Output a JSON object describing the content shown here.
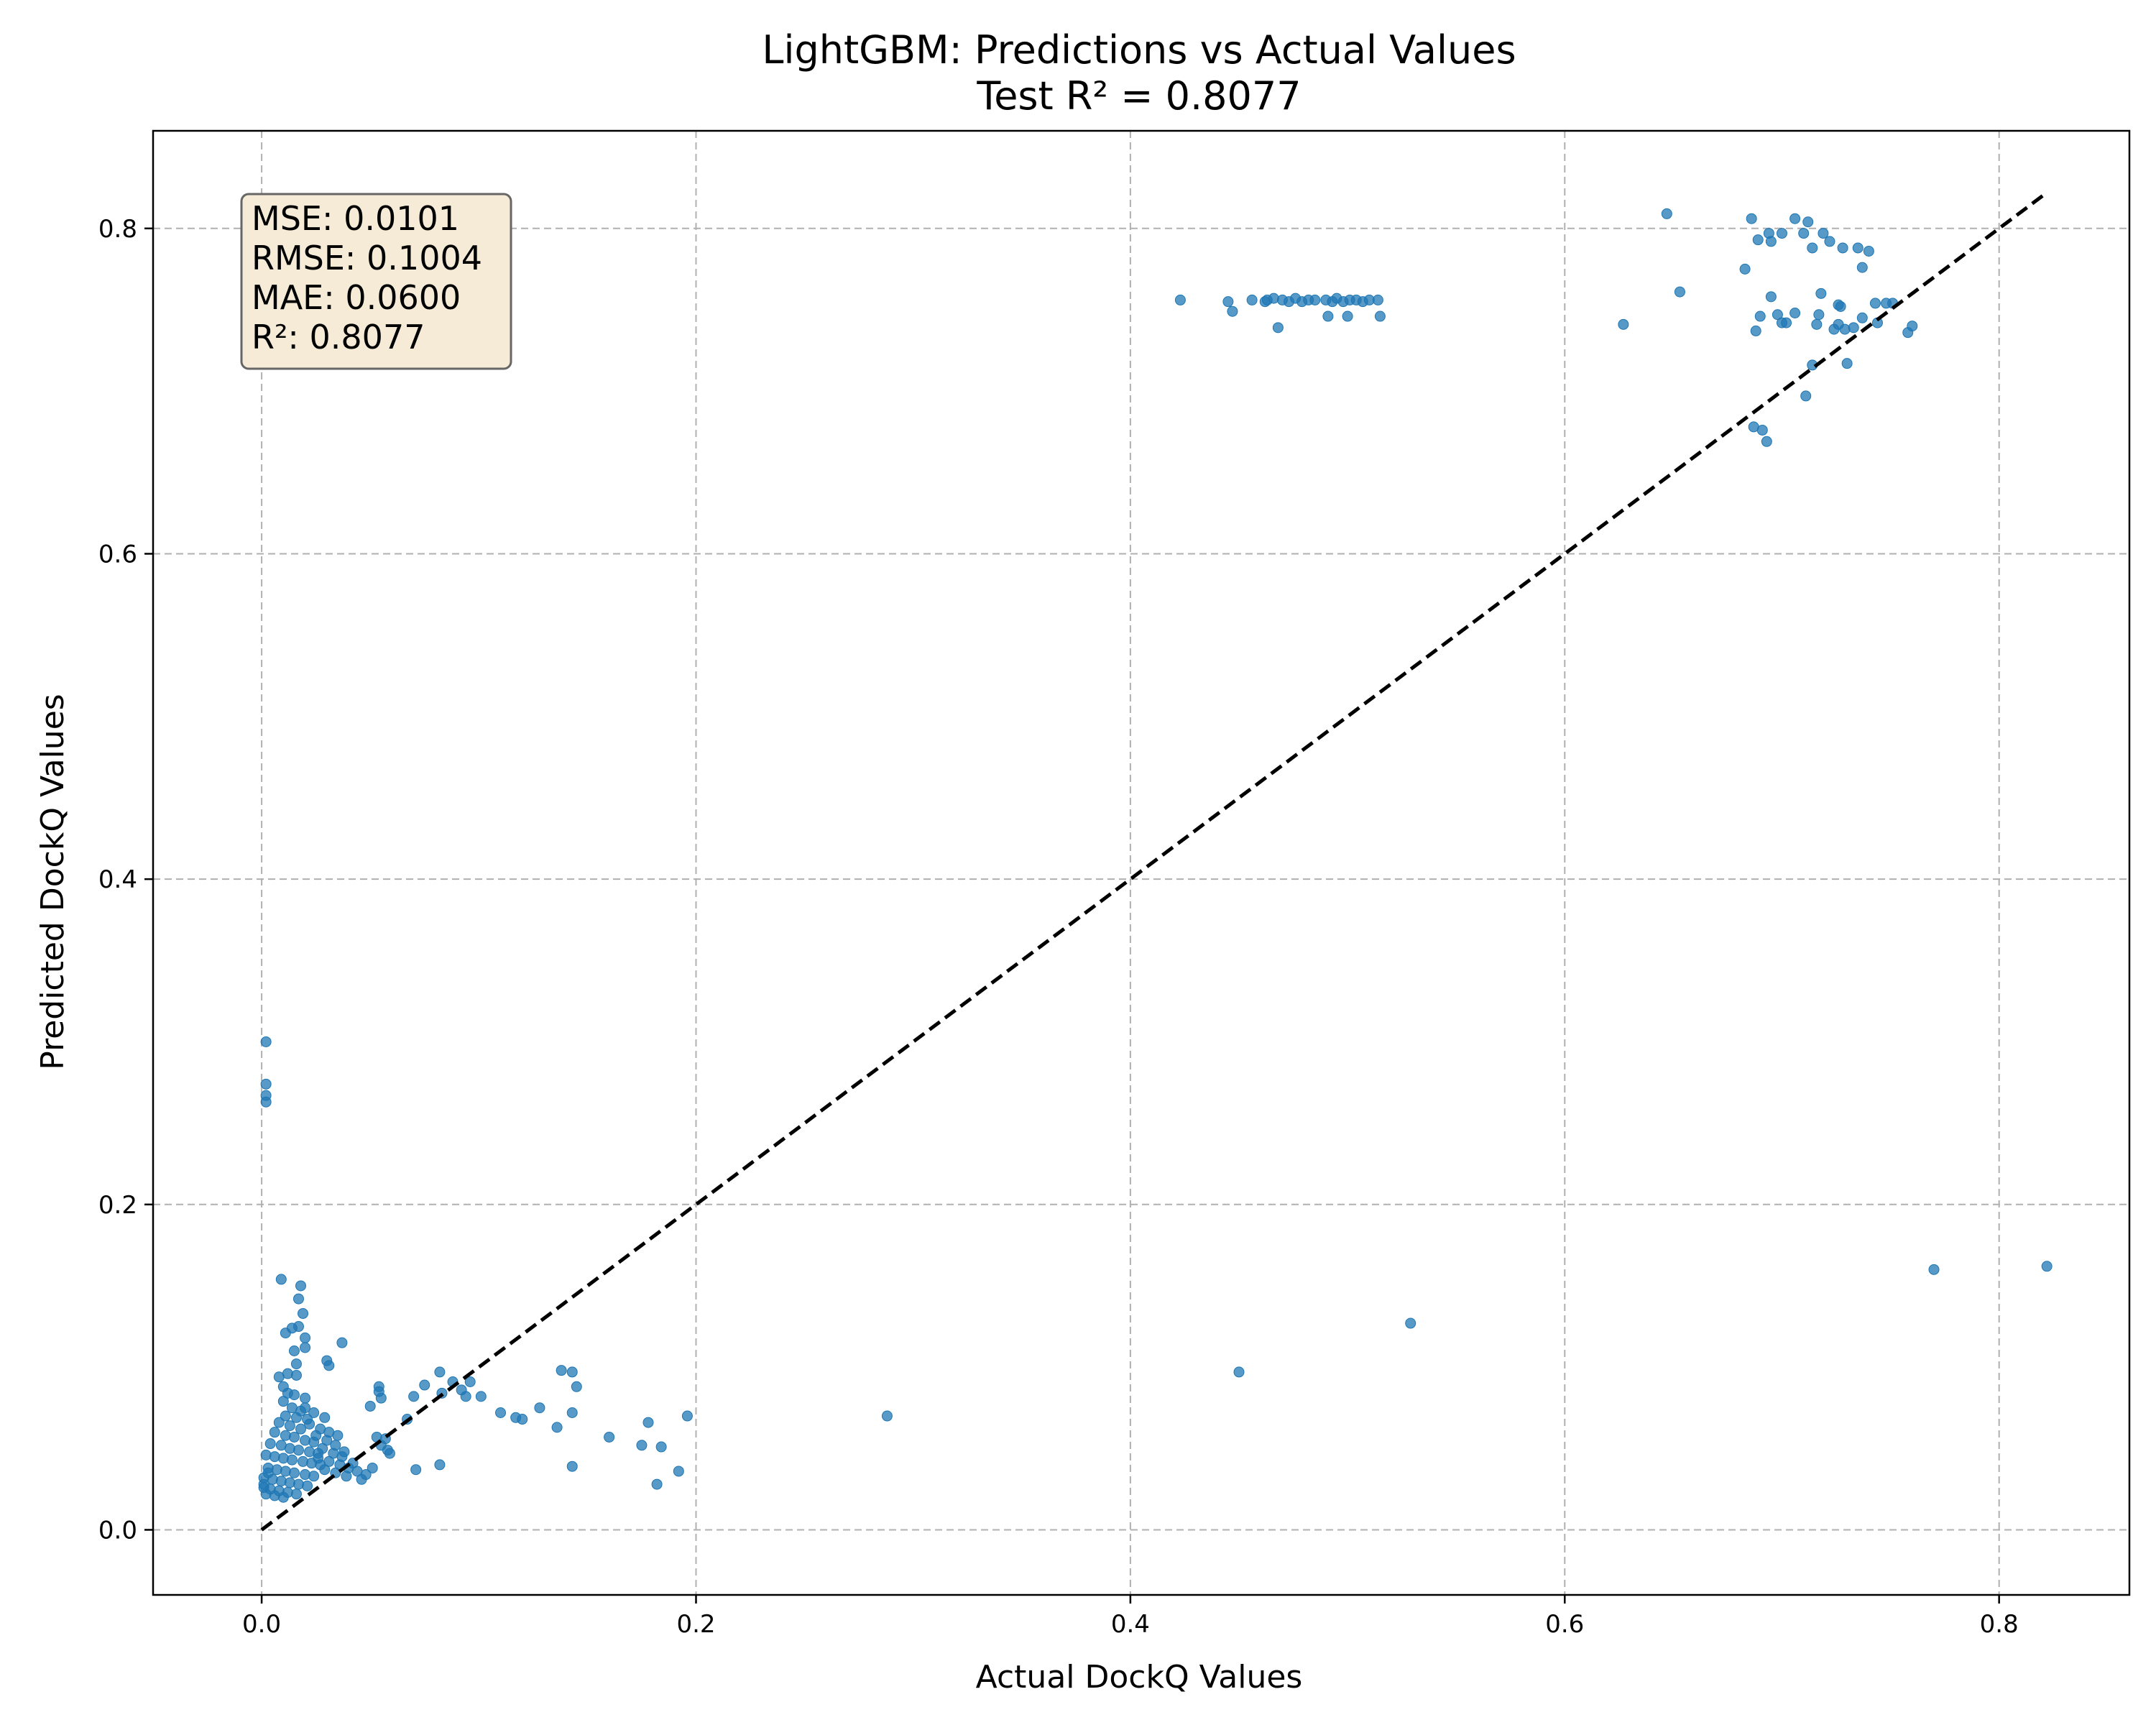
{
  "chart_data": {
    "type": "scatter",
    "title": "LightGBM: Predictions vs Actual Values",
    "subtitle": "Test R² = 0.8077",
    "xlabel": "Actual DockQ Values",
    "ylabel": "Predicted DockQ Values",
    "xlim": [
      -0.05,
      0.86
    ],
    "ylim": [
      -0.04,
      0.86
    ],
    "xticks": [
      "0.0",
      "0.2",
      "0.4",
      "0.6",
      "0.8"
    ],
    "yticks": [
      "0.0",
      "0.2",
      "0.4",
      "0.6",
      "0.8"
    ],
    "grid": true,
    "point_color": "#1f77b4",
    "reference_line": {
      "from": [
        0.0,
        0.0
      ],
      "to": [
        0.82,
        0.82
      ],
      "style": "dashed",
      "color": "#000000"
    },
    "stats_box": {
      "lines": [
        "MSE: 0.0101",
        "RMSE: 0.1004",
        "MAE: 0.0600",
        "R²: 0.8077"
      ],
      "position": "top-left",
      "face_color": "#f6ebd7",
      "edge_color": "#666666"
    },
    "points": [
      [
        0.002,
        0.3
      ],
      [
        0.002,
        0.274
      ],
      [
        0.002,
        0.267
      ],
      [
        0.002,
        0.263
      ],
      [
        0.009,
        0.154
      ],
      [
        0.018,
        0.15
      ],
      [
        0.017,
        0.142
      ],
      [
        0.019,
        0.133
      ],
      [
        0.017,
        0.125
      ],
      [
        0.011,
        0.121
      ],
      [
        0.014,
        0.124
      ],
      [
        0.02,
        0.118
      ],
      [
        0.015,
        0.11
      ],
      [
        0.02,
        0.112
      ],
      [
        0.016,
        0.102
      ],
      [
        0.008,
        0.094
      ],
      [
        0.012,
        0.096
      ],
      [
        0.016,
        0.095
      ],
      [
        0.01,
        0.088
      ],
      [
        0.015,
        0.083
      ],
      [
        0.012,
        0.084
      ],
      [
        0.02,
        0.081
      ],
      [
        0.01,
        0.079
      ],
      [
        0.014,
        0.075
      ],
      [
        0.018,
        0.073
      ],
      [
        0.011,
        0.07
      ],
      [
        0.016,
        0.069
      ],
      [
        0.021,
        0.068
      ],
      [
        0.008,
        0.066
      ],
      [
        0.013,
        0.064
      ],
      [
        0.018,
        0.062
      ],
      [
        0.006,
        0.06
      ],
      [
        0.011,
        0.058
      ],
      [
        0.015,
        0.057
      ],
      [
        0.02,
        0.055
      ],
      [
        0.024,
        0.054
      ],
      [
        0.004,
        0.053
      ],
      [
        0.009,
        0.052
      ],
      [
        0.013,
        0.05
      ],
      [
        0.017,
        0.049
      ],
      [
        0.022,
        0.048
      ],
      [
        0.026,
        0.047
      ],
      [
        0.002,
        0.046
      ],
      [
        0.006,
        0.045
      ],
      [
        0.01,
        0.044
      ],
      [
        0.014,
        0.043
      ],
      [
        0.019,
        0.042
      ],
      [
        0.023,
        0.041
      ],
      [
        0.027,
        0.04
      ],
      [
        0.003,
        0.038
      ],
      [
        0.007,
        0.037
      ],
      [
        0.011,
        0.036
      ],
      [
        0.015,
        0.035
      ],
      [
        0.02,
        0.034
      ],
      [
        0.024,
        0.033
      ],
      [
        0.001,
        0.032
      ],
      [
        0.005,
        0.031
      ],
      [
        0.009,
        0.03
      ],
      [
        0.013,
        0.029
      ],
      [
        0.017,
        0.028
      ],
      [
        0.021,
        0.027
      ],
      [
        0.001,
        0.026
      ],
      [
        0.004,
        0.025
      ],
      [
        0.008,
        0.024
      ],
      [
        0.012,
        0.023
      ],
      [
        0.016,
        0.022
      ],
      [
        0.006,
        0.021
      ],
      [
        0.01,
        0.02
      ],
      [
        0.001,
        0.028
      ],
      [
        0.002,
        0.022
      ],
      [
        0.003,
        0.035
      ],
      [
        0.02,
        0.075
      ],
      [
        0.024,
        0.072
      ],
      [
        0.029,
        0.069
      ],
      [
        0.022,
        0.065
      ],
      [
        0.027,
        0.062
      ],
      [
        0.031,
        0.06
      ],
      [
        0.025,
        0.058
      ],
      [
        0.03,
        0.055
      ],
      [
        0.034,
        0.052
      ],
      [
        0.028,
        0.05
      ],
      [
        0.033,
        0.047
      ],
      [
        0.037,
        0.045
      ],
      [
        0.026,
        0.044
      ],
      [
        0.031,
        0.042
      ],
      [
        0.036,
        0.04
      ],
      [
        0.04,
        0.038
      ],
      [
        0.029,
        0.037
      ],
      [
        0.034,
        0.035
      ],
      [
        0.039,
        0.033
      ],
      [
        0.044,
        0.036
      ],
      [
        0.046,
        0.031
      ],
      [
        0.048,
        0.034
      ],
      [
        0.03,
        0.104
      ],
      [
        0.031,
        0.101
      ],
      [
        0.037,
        0.115
      ],
      [
        0.035,
        0.058
      ],
      [
        0.038,
        0.048
      ],
      [
        0.042,
        0.041
      ],
      [
        0.05,
        0.076
      ],
      [
        0.054,
        0.088
      ],
      [
        0.054,
        0.085
      ],
      [
        0.055,
        0.081
      ],
      [
        0.053,
        0.057
      ],
      [
        0.055,
        0.052
      ],
      [
        0.057,
        0.056
      ],
      [
        0.058,
        0.049
      ],
      [
        0.059,
        0.047
      ],
      [
        0.051,
        0.038
      ],
      [
        0.067,
        0.068
      ],
      [
        0.07,
        0.082
      ],
      [
        0.071,
        0.037
      ],
      [
        0.075,
        0.089
      ],
      [
        0.082,
        0.097
      ],
      [
        0.083,
        0.084
      ],
      [
        0.082,
        0.04
      ],
      [
        0.088,
        0.091
      ],
      [
        0.092,
        0.086
      ],
      [
        0.094,
        0.082
      ],
      [
        0.096,
        0.091
      ],
      [
        0.101,
        0.082
      ],
      [
        0.11,
        0.072
      ],
      [
        0.117,
        0.069
      ],
      [
        0.12,
        0.068
      ],
      [
        0.128,
        0.075
      ],
      [
        0.136,
        0.063
      ],
      [
        0.138,
        0.098
      ],
      [
        0.143,
        0.097
      ],
      [
        0.145,
        0.088
      ],
      [
        0.143,
        0.072
      ],
      [
        0.143,
        0.039
      ],
      [
        0.16,
        0.057
      ],
      [
        0.175,
        0.052
      ],
      [
        0.178,
        0.066
      ],
      [
        0.182,
        0.028
      ],
      [
        0.184,
        0.051
      ],
      [
        0.192,
        0.036
      ],
      [
        0.196,
        0.07
      ],
      [
        0.288,
        0.07
      ],
      [
        0.423,
        0.756
      ],
      [
        0.445,
        0.755
      ],
      [
        0.447,
        0.749
      ],
      [
        0.456,
        0.756
      ],
      [
        0.462,
        0.755
      ],
      [
        0.466,
        0.757
      ],
      [
        0.47,
        0.756
      ],
      [
        0.473,
        0.755
      ],
      [
        0.476,
        0.757
      ],
      [
        0.479,
        0.755
      ],
      [
        0.482,
        0.756
      ],
      [
        0.468,
        0.739
      ],
      [
        0.49,
        0.756
      ],
      [
        0.493,
        0.755
      ],
      [
        0.495,
        0.757
      ],
      [
        0.498,
        0.755
      ],
      [
        0.501,
        0.756
      ],
      [
        0.504,
        0.756
      ],
      [
        0.507,
        0.755
      ],
      [
        0.51,
        0.756
      ],
      [
        0.514,
        0.756
      ],
      [
        0.491,
        0.746
      ],
      [
        0.5,
        0.746
      ],
      [
        0.515,
        0.746
      ],
      [
        0.463,
        0.756
      ],
      [
        0.485,
        0.756
      ],
      [
        0.45,
        0.097
      ],
      [
        0.529,
        0.127
      ],
      [
        0.77,
        0.16
      ],
      [
        0.822,
        0.162
      ],
      [
        0.627,
        0.741
      ],
      [
        0.647,
        0.809
      ],
      [
        0.653,
        0.761
      ],
      [
        0.683,
        0.775
      ],
      [
        0.686,
        0.806
      ],
      [
        0.689,
        0.793
      ],
      [
        0.694,
        0.797
      ],
      [
        0.695,
        0.792
      ],
      [
        0.7,
        0.797
      ],
      [
        0.706,
        0.806
      ],
      [
        0.71,
        0.797
      ],
      [
        0.712,
        0.804
      ],
      [
        0.714,
        0.788
      ],
      [
        0.719,
        0.797
      ],
      [
        0.722,
        0.792
      ],
      [
        0.728,
        0.788
      ],
      [
        0.735,
        0.788
      ],
      [
        0.737,
        0.776
      ],
      [
        0.74,
        0.786
      ],
      [
        0.688,
        0.737
      ],
      [
        0.69,
        0.746
      ],
      [
        0.695,
        0.758
      ],
      [
        0.698,
        0.747
      ],
      [
        0.7,
        0.742
      ],
      [
        0.702,
        0.742
      ],
      [
        0.706,
        0.748
      ],
      [
        0.716,
        0.741
      ],
      [
        0.717,
        0.747
      ],
      [
        0.718,
        0.76
      ],
      [
        0.724,
        0.738
      ],
      [
        0.726,
        0.753
      ],
      [
        0.727,
        0.752
      ],
      [
        0.726,
        0.741
      ],
      [
        0.729,
        0.738
      ],
      [
        0.733,
        0.739
      ],
      [
        0.737,
        0.745
      ],
      [
        0.743,
        0.754
      ],
      [
        0.744,
        0.742
      ],
      [
        0.748,
        0.754
      ],
      [
        0.751,
        0.754
      ],
      [
        0.758,
        0.736
      ],
      [
        0.76,
        0.74
      ],
      [
        0.687,
        0.678
      ],
      [
        0.691,
        0.676
      ],
      [
        0.693,
        0.669
      ],
      [
        0.711,
        0.697
      ],
      [
        0.714,
        0.716
      ],
      [
        0.73,
        0.717
      ]
    ]
  }
}
